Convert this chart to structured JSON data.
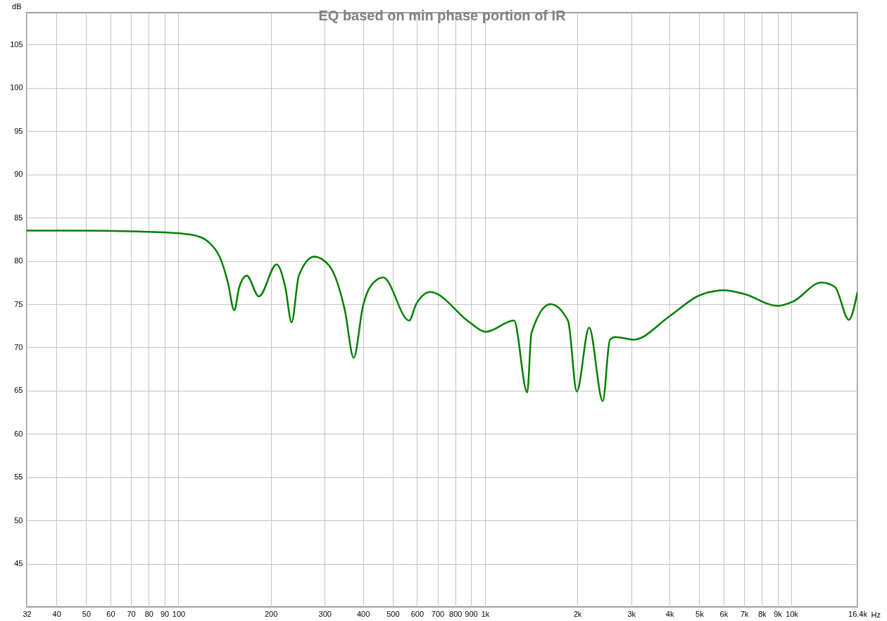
{
  "chart_data": {
    "type": "line",
    "title": "EQ based on min phase portion of IR",
    "xlabel": "Hz",
    "ylabel": "dB",
    "log": "x",
    "grid": true,
    "xlim": [
      32,
      16400
    ],
    "ylim": [
      40,
      108.7
    ],
    "xticks": [
      32,
      40,
      50,
      60,
      70,
      80,
      90,
      100,
      200,
      300,
      400,
      500,
      600,
      700,
      800,
      900,
      {
        "value": 1000,
        "label": "1k"
      },
      {
        "value": 2000,
        "label": "2k"
      },
      {
        "value": 3000,
        "label": "3k"
      },
      {
        "value": 4000,
        "label": "4k"
      },
      {
        "value": 5000,
        "label": "5k"
      },
      {
        "value": 6000,
        "label": "6k"
      },
      {
        "value": 7000,
        "label": "7k"
      },
      {
        "value": 8000,
        "label": "8k"
      },
      {
        "value": 9000,
        "label": "9k"
      },
      {
        "value": 10000,
        "label": "10k"
      },
      {
        "value": 16400,
        "label": "16.4k"
      }
    ],
    "yticks": [
      45,
      50,
      55,
      60,
      65,
      70,
      75,
      80,
      85,
      90,
      95,
      100,
      105
    ],
    "x": [
      32,
      44,
      74,
      100,
      117,
      127,
      137,
      145,
      152,
      158,
      167,
      183,
      209,
      223,
      234,
      247,
      277,
      294,
      326,
      349,
      373,
      400,
      422,
      465,
      566,
      596,
      663,
      891,
      1004,
      1243,
      1373,
      1418,
      1634,
      1865,
      1993,
      2186,
      2422,
      2556,
      2666,
      3053,
      3997,
      4990,
      6010,
      6968,
      9033,
      10100,
      12500,
      13840,
      15380,
      16400
    ],
    "series": [
      {
        "color": "#008000",
        "values": [
          83.5,
          83.5,
          83.4,
          83.2,
          82.8,
          82.0,
          80.3,
          77.5,
          74.3,
          77.0,
          78.3,
          75.9,
          79.6,
          77.0,
          72.9,
          78.3,
          80.5,
          80.2,
          78.0,
          74.3,
          68.8,
          74.8,
          77.0,
          78.1,
          73.1,
          75.0,
          76.4,
          72.9,
          71.8,
          73.1,
          64.8,
          71.7,
          75.0,
          73.1,
          64.9,
          72.3,
          63.8,
          70.9,
          71.2,
          70.9,
          73.6,
          76.0,
          76.6,
          76.2,
          74.8,
          75.3,
          77.5,
          77.0,
          73.2,
          76.4
        ]
      }
    ]
  }
}
